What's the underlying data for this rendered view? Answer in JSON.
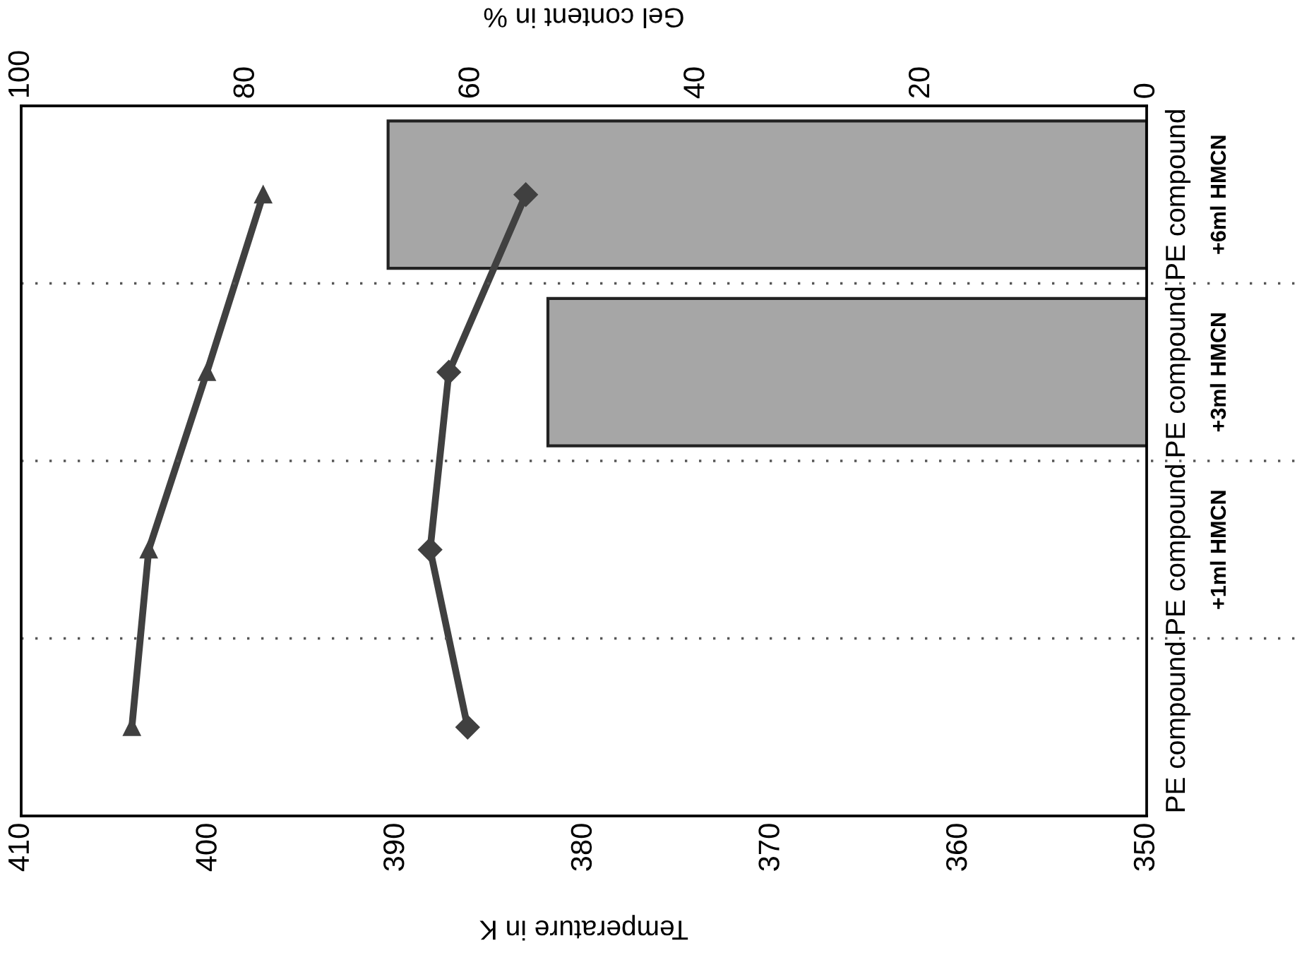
{
  "chart_data": {
    "type": "line",
    "orientation": "horizontal",
    "categories": [
      "PE compound\n+6ml HMCN",
      "PE compound\n+3ml HMCN",
      "PE compound\n+1ml HMCN",
      "PE compound"
    ],
    "xlabel": "Temperature in K",
    "x2label": "Gel content in %",
    "xlim": [
      410,
      350
    ],
    "xticks": [
      350,
      360,
      370,
      380,
      390,
      400,
      410
    ],
    "x2lim": [
      100,
      0
    ],
    "x2ticks": [
      0,
      20,
      40,
      60,
      80,
      100
    ],
    "grid": "y",
    "series": [
      {
        "type": "bar",
        "axis": "x2",
        "color": "#a6a6a6",
        "values": [
          67.4,
          53.2,
          null,
          null
        ]
      },
      {
        "color": "#404040",
        "marker": "triangle",
        "values": [
          397.1,
          400.1,
          403.2,
          404.1
        ]
      },
      {
        "color": "#404040",
        "marker": "diamond",
        "values": [
          383.1,
          387.2,
          388.2,
          386.2
        ]
      }
    ]
  }
}
